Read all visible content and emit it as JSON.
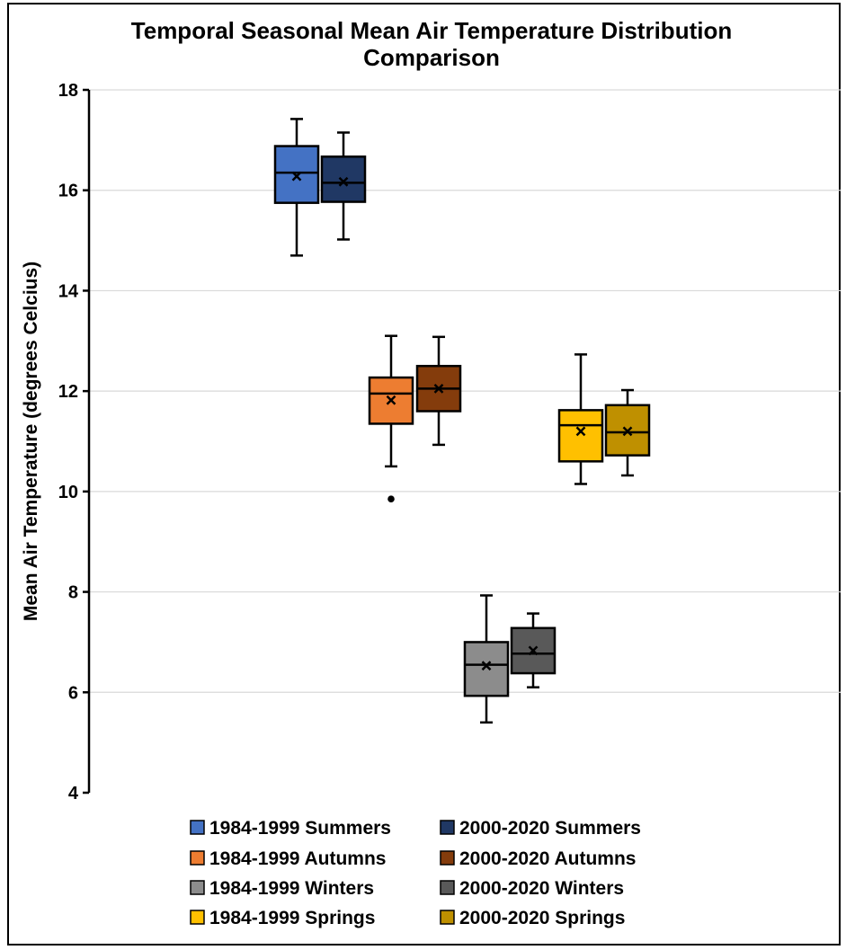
{
  "chart_data": {
    "type": "box",
    "title_lines": [
      "Temporal Seasonal Mean Air Temperature Distribution",
      "Comparison"
    ],
    "xlabel": "",
    "ylabel": "Mean Air Temperature (degrees Celcius)",
    "ylim": [
      4,
      18
    ],
    "yticks": [
      "4",
      "6",
      "8",
      "10",
      "12",
      "14",
      "16",
      "18"
    ],
    "grid": true,
    "legend_placement": "bottom",
    "series": [
      {
        "name": "1984-1999 Summers",
        "color": "#4472C4",
        "min": 14.7,
        "q1": 15.75,
        "median": 16.35,
        "q3": 16.88,
        "max": 17.42,
        "mean": 16.28,
        "outliers": []
      },
      {
        "name": "2000-2020 Summers",
        "color": "#203864",
        "min": 15.02,
        "q1": 15.77,
        "median": 16.15,
        "q3": 16.67,
        "max": 17.15,
        "mean": 16.17,
        "outliers": []
      },
      {
        "name": "1984-1999 Autumns",
        "color": "#ED7D31",
        "min": 10.5,
        "q1": 11.35,
        "median": 11.95,
        "q3": 12.27,
        "max": 13.1,
        "mean": 11.82,
        "outliers": [
          9.85
        ]
      },
      {
        "name": "2000-2020 Autumns",
        "color": "#843C0C",
        "min": 10.93,
        "q1": 11.6,
        "median": 12.05,
        "q3": 12.5,
        "max": 13.08,
        "mean": 12.05,
        "outliers": []
      },
      {
        "name": "1984-1999 Winters",
        "color": "#8C8C8C",
        "min": 5.4,
        "q1": 5.93,
        "median": 6.55,
        "q3": 7.0,
        "max": 7.93,
        "mean": 6.53,
        "outliers": []
      },
      {
        "name": "2000-2020 Winters",
        "color": "#595959",
        "min": 6.1,
        "q1": 6.38,
        "median": 6.77,
        "q3": 7.28,
        "max": 7.57,
        "mean": 6.83,
        "outliers": []
      },
      {
        "name": "1984-1999 Springs",
        "color": "#FFC000",
        "min": 10.15,
        "q1": 10.6,
        "median": 11.32,
        "q3": 11.62,
        "max": 12.73,
        "mean": 11.2,
        "outliers": []
      },
      {
        "name": "2000-2020 Springs",
        "color": "#BF9000",
        "min": 10.32,
        "q1": 10.72,
        "median": 11.18,
        "q3": 11.72,
        "max": 12.02,
        "mean": 11.2,
        "outliers": []
      }
    ]
  }
}
